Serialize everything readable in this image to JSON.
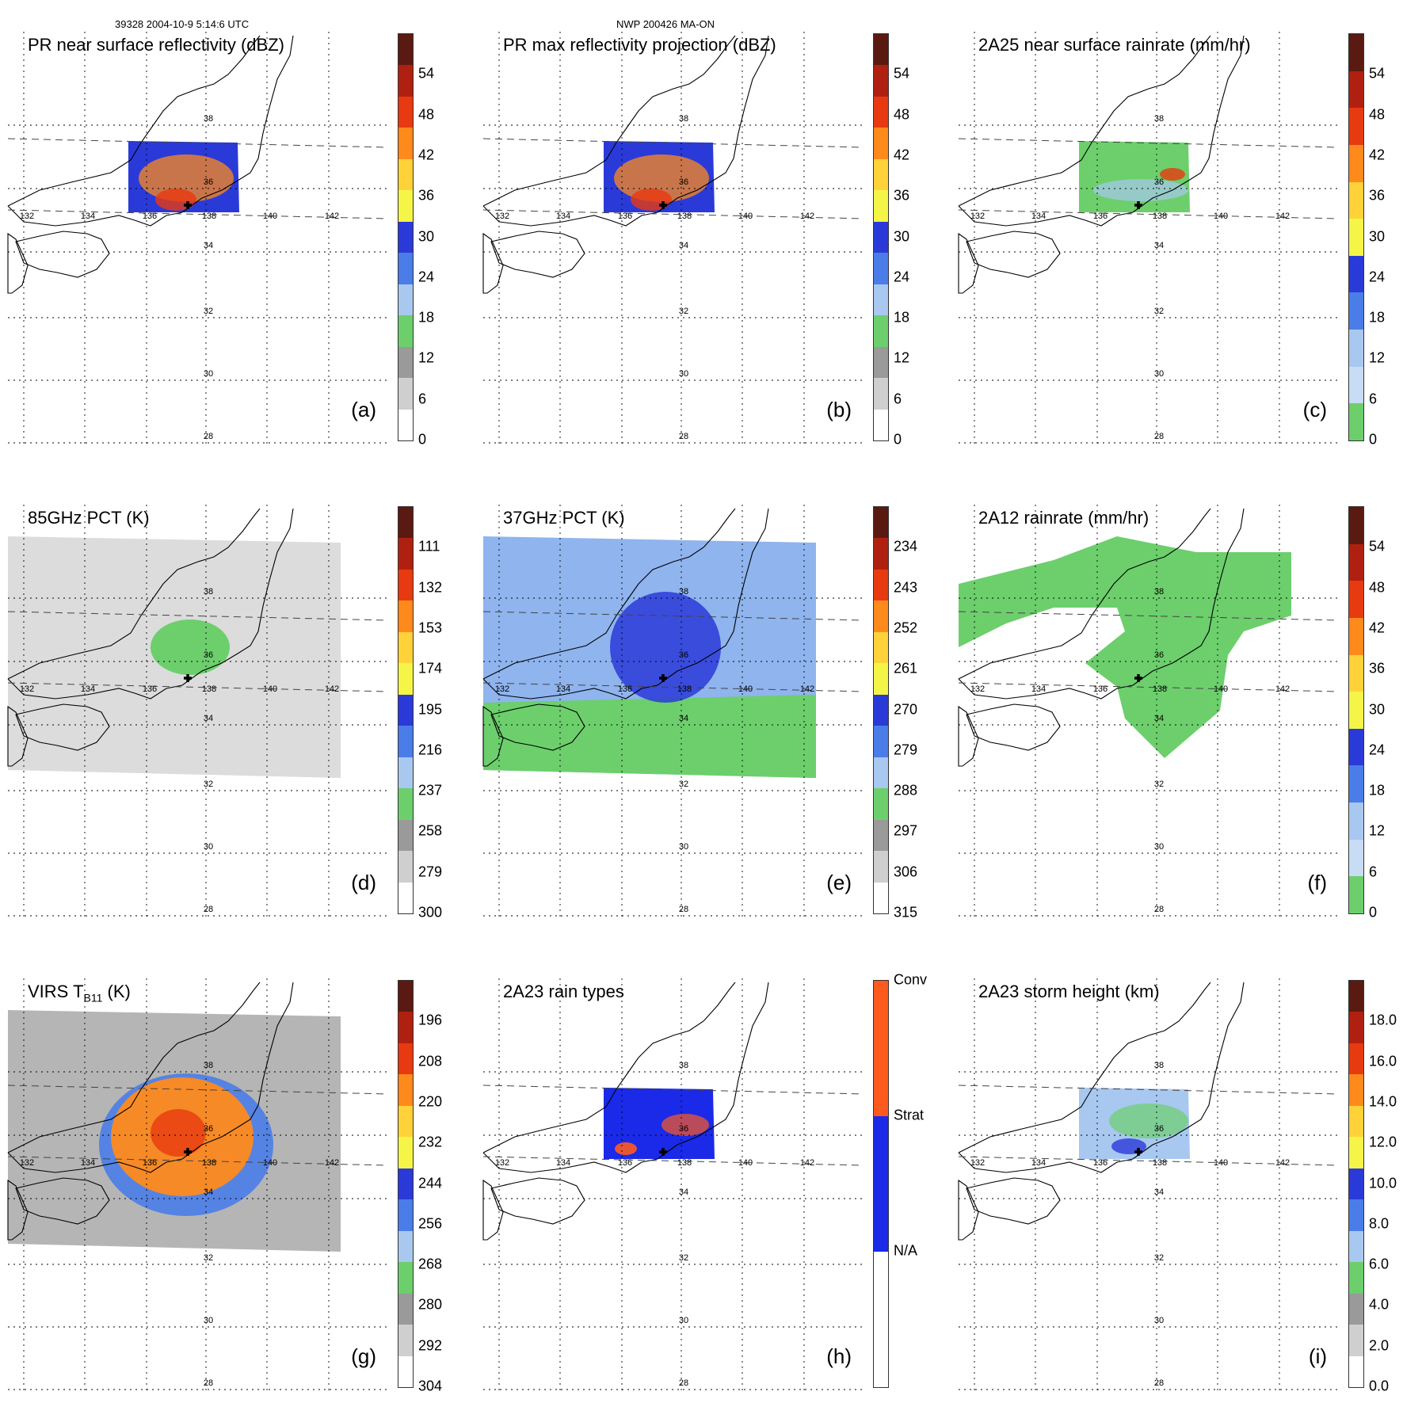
{
  "header": {
    "left": "39328 2004-10-9 5:14:6 UTC",
    "center": "NWP 200426 MA-ON"
  },
  "lat_labels": [
    "38",
    "36",
    "34",
    "32",
    "30",
    "28"
  ],
  "lon_labels": [
    "132",
    "134",
    "136",
    "138",
    "140",
    "142"
  ],
  "panels": [
    {
      "id": "a",
      "title": "PR near surface reflectivity (dBZ)",
      "label": "(a)",
      "ticks": [
        "54",
        "48",
        "42",
        "36",
        "30",
        "24",
        "18",
        "12",
        "6",
        "0"
      ],
      "colors": [
        "#5a1a12",
        "#b02010",
        "#e83a10",
        "#ff8a1c",
        "#ffd23a",
        "#f5f548",
        "#2a3ad8",
        "#4a7de8",
        "#a8c8f0",
        "#6ccf6c",
        "#9a9a9a",
        "#cfcfcf",
        "#ffffff"
      ],
      "swath": "pr",
      "fill": "pr_refl"
    },
    {
      "id": "b",
      "title": "PR max reflectivity projection (dBZ)",
      "label": "(b)",
      "ticks": [
        "54",
        "48",
        "42",
        "36",
        "30",
        "24",
        "18",
        "12",
        "6",
        "0"
      ],
      "colors": [
        "#5a1a12",
        "#b02010",
        "#e83a10",
        "#ff8a1c",
        "#ffd23a",
        "#f5f548",
        "#2a3ad8",
        "#4a7de8",
        "#a8c8f0",
        "#6ccf6c",
        "#9a9a9a",
        "#cfcfcf",
        "#ffffff"
      ],
      "swath": "pr",
      "fill": "pr_max"
    },
    {
      "id": "c",
      "title": "2A25 near surface rainrate (mm/hr)",
      "label": "(c)",
      "ticks": [
        "54",
        "48",
        "42",
        "36",
        "30",
        "24",
        "18",
        "12",
        "6",
        "0"
      ],
      "colors": [
        "#5a1a12",
        "#b02010",
        "#e83a10",
        "#ff8a1c",
        "#ffd23a",
        "#f5f548",
        "#2a3ad8",
        "#4a7de8",
        "#a8c8f0",
        "#c8dcf5",
        "#6ccf6c"
      ],
      "swath": "pr",
      "fill": "rain"
    },
    {
      "id": "d",
      "title": "85GHz PCT (K)",
      "label": "(d)",
      "ticks": [
        "111",
        "132",
        "153",
        "174",
        "195",
        "216",
        "237",
        "258",
        "279",
        "300"
      ],
      "colors": [
        "#5a1a12",
        "#b02010",
        "#e83a10",
        "#ff8a1c",
        "#ffd23a",
        "#f5f548",
        "#2a3ad8",
        "#4a7de8",
        "#a8c8f0",
        "#6ccf6c",
        "#9a9a9a",
        "#cfcfcf",
        "#ffffff"
      ],
      "swath": "tmi",
      "fill": "pct85"
    },
    {
      "id": "e",
      "title": "37GHz PCT (K)",
      "label": "(e)",
      "ticks": [
        "234",
        "243",
        "252",
        "261",
        "270",
        "279",
        "288",
        "297",
        "306",
        "315"
      ],
      "colors": [
        "#5a1a12",
        "#b02010",
        "#e83a10",
        "#ff8a1c",
        "#ffd23a",
        "#f5f548",
        "#2a3ad8",
        "#4a7de8",
        "#a8c8f0",
        "#6ccf6c",
        "#9a9a9a",
        "#cfcfcf",
        "#ffffff"
      ],
      "swath": "tmi",
      "fill": "pct37"
    },
    {
      "id": "f",
      "title": "2A12 rainrate (mm/hr)",
      "label": "(f)",
      "ticks": [
        "54",
        "48",
        "42",
        "36",
        "30",
        "24",
        "18",
        "12",
        "6",
        "0"
      ],
      "colors": [
        "#5a1a12",
        "#b02010",
        "#e83a10",
        "#ff8a1c",
        "#ffd23a",
        "#f5f548",
        "#2a3ad8",
        "#4a7de8",
        "#a8c8f0",
        "#c8dcf5",
        "#6ccf6c"
      ],
      "swath": "tmi",
      "fill": "rain12"
    },
    {
      "id": "g",
      "title_main": "VIRS T",
      "title_sub": "B11",
      "title_end": " (K)",
      "label": "(g)",
      "ticks": [
        "196",
        "208",
        "220",
        "232",
        "244",
        "256",
        "268",
        "280",
        "292",
        "304"
      ],
      "colors": [
        "#5a1a12",
        "#b02010",
        "#e83a10",
        "#ff8a1c",
        "#ffd23a",
        "#f5f548",
        "#2a3ad8",
        "#4a7de8",
        "#a8c8f0",
        "#6ccf6c",
        "#9a9a9a",
        "#cfcfcf",
        "#ffffff"
      ],
      "swath": "virs",
      "fill": "virs"
    },
    {
      "id": "h",
      "title": "2A23 rain types",
      "label": "(h)",
      "ticks": [
        "Conv",
        "Strat",
        "N/A"
      ],
      "colors": [
        "#ff5a1e",
        "#1a2ae8",
        "#ffffff"
      ],
      "swath": "pr",
      "fill": "types"
    },
    {
      "id": "i",
      "title": "2A23 storm height (km)",
      "label": "(i)",
      "ticks": [
        "18.0",
        "16.0",
        "14.0",
        "12.0",
        "10.0",
        "8.0",
        "6.0",
        "4.0",
        "2.0",
        "0.0"
      ],
      "colors": [
        "#5a1a12",
        "#b02010",
        "#e83a10",
        "#ff8a1c",
        "#ffd23a",
        "#f5f548",
        "#2a3ad8",
        "#4a7de8",
        "#a8c8f0",
        "#6ccf6c",
        "#9a9a9a",
        "#cfcfcf",
        "#ffffff"
      ],
      "swath": "pr",
      "fill": "height"
    }
  ]
}
